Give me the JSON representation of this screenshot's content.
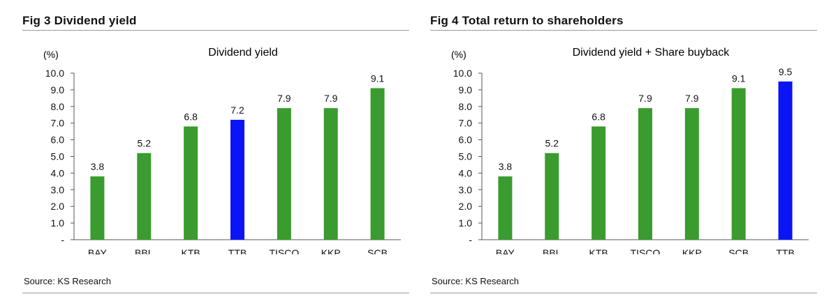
{
  "colors": {
    "bar": "#3a9b2e",
    "highlight": "#0a14f5",
    "axis": "#555555"
  },
  "chart_data": [
    {
      "figure_title": "Fig 3  Dividend yield",
      "type": "bar",
      "title": "Dividend yield",
      "ylabel": "(%)",
      "categories": [
        "BAY",
        "BBL",
        "KTB",
        "TTB",
        "TISCO",
        "KKP",
        "SCB"
      ],
      "values": [
        3.8,
        5.2,
        6.8,
        7.2,
        7.9,
        7.9,
        9.1
      ],
      "value_labels": [
        "3.8",
        "5.2",
        "6.8",
        "7.2",
        "7.9",
        "7.9",
        "9.1"
      ],
      "highlight": "TTB",
      "ylim": [
        0,
        10
      ],
      "yticks": [
        "-",
        "1.0",
        "2.0",
        "3.0",
        "4.0",
        "5.0",
        "6.0",
        "7.0",
        "8.0",
        "9.0",
        "10.0"
      ],
      "source": "Source: KS Research"
    },
    {
      "figure_title": "Fig 4  Total return to shareholders",
      "type": "bar",
      "title": "Dividend yield + Share buyback",
      "ylabel": "(%)",
      "categories": [
        "BAY",
        "BBL",
        "KTB",
        "TISCO",
        "KKP",
        "SCB",
        "TTB"
      ],
      "values": [
        3.8,
        5.2,
        6.8,
        7.9,
        7.9,
        9.1,
        9.5
      ],
      "value_labels": [
        "3.8",
        "5.2",
        "6.8",
        "7.9",
        "7.9",
        "9.1",
        "9.5"
      ],
      "highlight": "TTB",
      "ylim": [
        0,
        10
      ],
      "yticks": [
        "-",
        "1.0",
        "2.0",
        "3.0",
        "4.0",
        "5.0",
        "6.0",
        "7.0",
        "8.0",
        "9.0",
        "10.0"
      ],
      "source": "Source: KS Research"
    }
  ]
}
